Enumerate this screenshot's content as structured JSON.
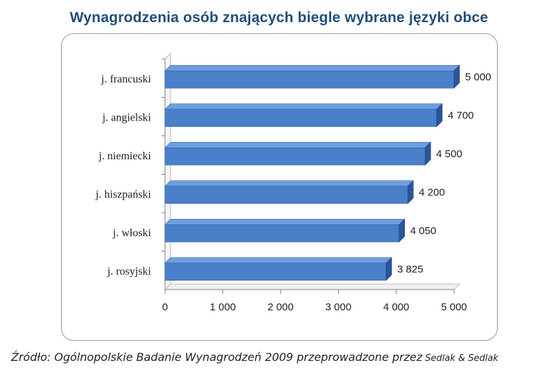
{
  "chart_data": {
    "type": "bar",
    "orientation": "horizontal",
    "title": "Wynagrodzenia osób znających biegle wybrane języki obce",
    "categories": [
      "j. francuski",
      "j. angielski",
      "j. niemiecki",
      "j. hiszpański",
      "j. włoski",
      "j. rosyjski"
    ],
    "values": [
      5000,
      4700,
      4500,
      4200,
      4050,
      3825
    ],
    "value_labels": [
      "5 000",
      "4 700",
      "4 500",
      "4 200",
      "4 050",
      "3 825"
    ],
    "x_ticks": [
      0,
      1000,
      2000,
      3000,
      4000,
      5000
    ],
    "x_tick_labels": [
      "0",
      "1 000",
      "2 000",
      "3 000",
      "4 000",
      "5 000"
    ],
    "xlim": [
      0,
      5000
    ],
    "grid": false,
    "bar_color": "#4a7fc9",
    "bar_top_color": "#6f9ee0",
    "bar_side_color": "#2a5699"
  },
  "source": {
    "text": "Źródło: Ogólnopolskie Badanie Wynagrodzeń 2009 przeprowadzone przez",
    "brand": "Sedlak & Sedlak"
  }
}
